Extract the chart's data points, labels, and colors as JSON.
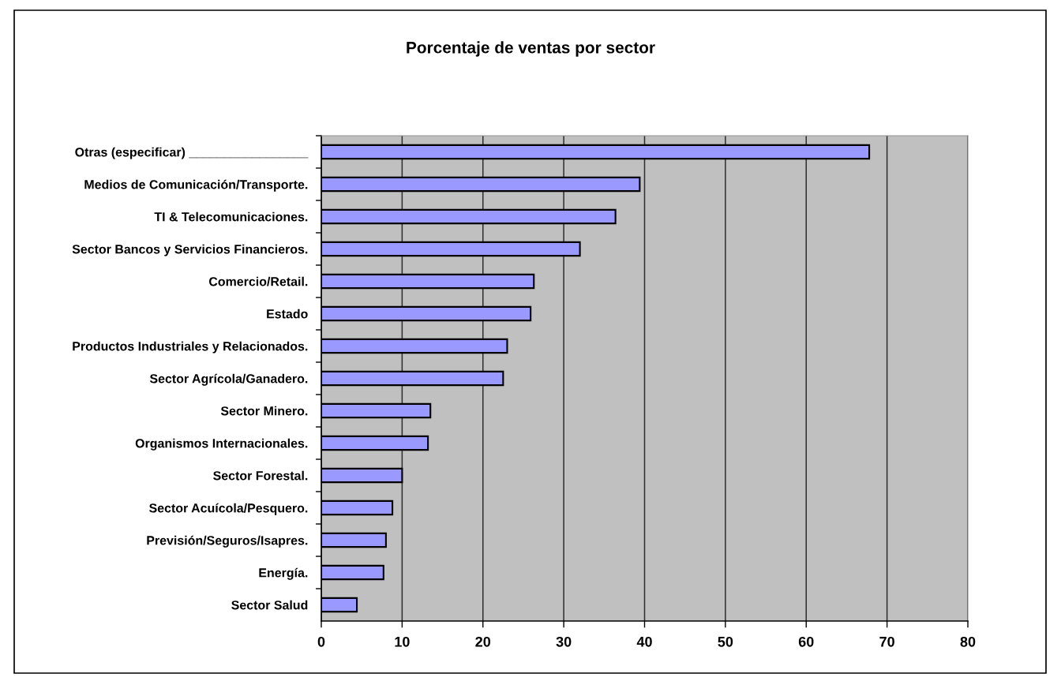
{
  "chart_data": {
    "type": "bar",
    "orientation": "horizontal",
    "title": "Porcentaje de ventas por sector",
    "categories": [
      "Otras (especificar) _________________",
      "Medios de Comunicación/Transporte.",
      "TI & Telecomunicaciones.",
      "Sector Bancos y Servicios Financieros.",
      "Comercio/Retail.",
      "Estado",
      "Productos Industriales y Relacionados.",
      "Sector Agrícola/Ganadero.",
      "Sector Minero.",
      "Organismos Internacionales.",
      "Sector Forestal.",
      "Sector Acuícola/Pesquero.",
      "Previsión/Seguros/Isapres.",
      "Energía.",
      "Sector Salud"
    ],
    "values": [
      67.8,
      39.4,
      36.4,
      32.0,
      26.3,
      25.9,
      23.0,
      22.5,
      13.5,
      13.2,
      10.0,
      8.8,
      8.0,
      7.7,
      4.4
    ],
    "color": "#9999ff",
    "xlim": [
      0,
      80
    ],
    "xticks": [
      0,
      10,
      20,
      30,
      40,
      50,
      60,
      70,
      80
    ],
    "grid": "x"
  }
}
